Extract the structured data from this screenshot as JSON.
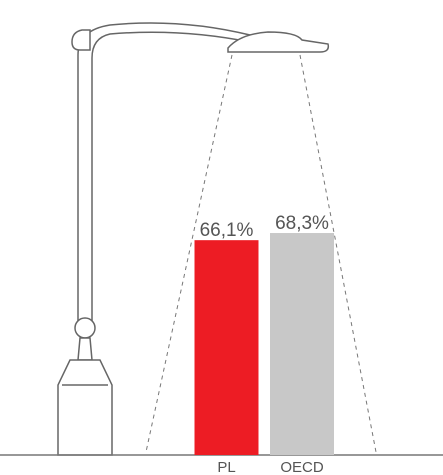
{
  "chart_data": {
    "type": "bar",
    "categories": [
      "PL",
      "OECD"
    ],
    "values": [
      66.1,
      68.3
    ],
    "value_labels": [
      "66,1%",
      "68,3%"
    ],
    "colors": [
      "#ed1c24",
      "#c8c8c8"
    ],
    "ylim": [
      0,
      100
    ]
  }
}
